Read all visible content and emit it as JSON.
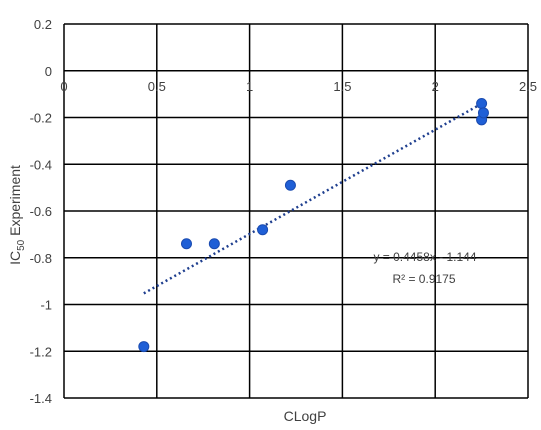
{
  "chart_data": {
    "type": "scatter",
    "xlabel": "CLogP",
    "ylabel": "IC50 Experiment",
    "ylabel_parts": {
      "pre": "IC",
      "sub": "50",
      "post": " Experiment"
    },
    "xlim": [
      0,
      2.5
    ],
    "ylim": [
      -1.4,
      0.2
    ],
    "x_ticks": [
      0,
      0.5,
      1,
      1.5,
      2,
      2.5
    ],
    "x_tick_labels": [
      "0",
      "0.5",
      "1",
      "1.5",
      "2",
      "2.5"
    ],
    "y_ticks": [
      0.2,
      0,
      -0.2,
      -0.4,
      -0.6,
      -0.8,
      -1,
      -1.2,
      -1.4
    ],
    "y_tick_labels": [
      "0.2",
      "0",
      "-0.2",
      "-0.4",
      "-0.6",
      "-0.8",
      "-1",
      "-1.2",
      "-1.4"
    ],
    "grid": true,
    "series": [
      {
        "x": [
          0.43,
          0.66,
          0.81,
          1.07,
          1.22,
          2.25,
          2.25,
          2.26
        ],
        "y": [
          -1.18,
          -0.74,
          -0.74,
          -0.68,
          -0.49,
          -0.14,
          -0.21,
          -0.18
        ],
        "color": "#1f5fd6"
      }
    ],
    "trendline": {
      "slope": 0.4458,
      "intercept": -1.144,
      "x_range": [
        0.43,
        2.25
      ],
      "color": "#1f3f8f",
      "style": "dotted"
    },
    "annotations": {
      "equation": "y = 0.4458x - 1.144",
      "r_squared": "R² = 0.9175"
    }
  }
}
